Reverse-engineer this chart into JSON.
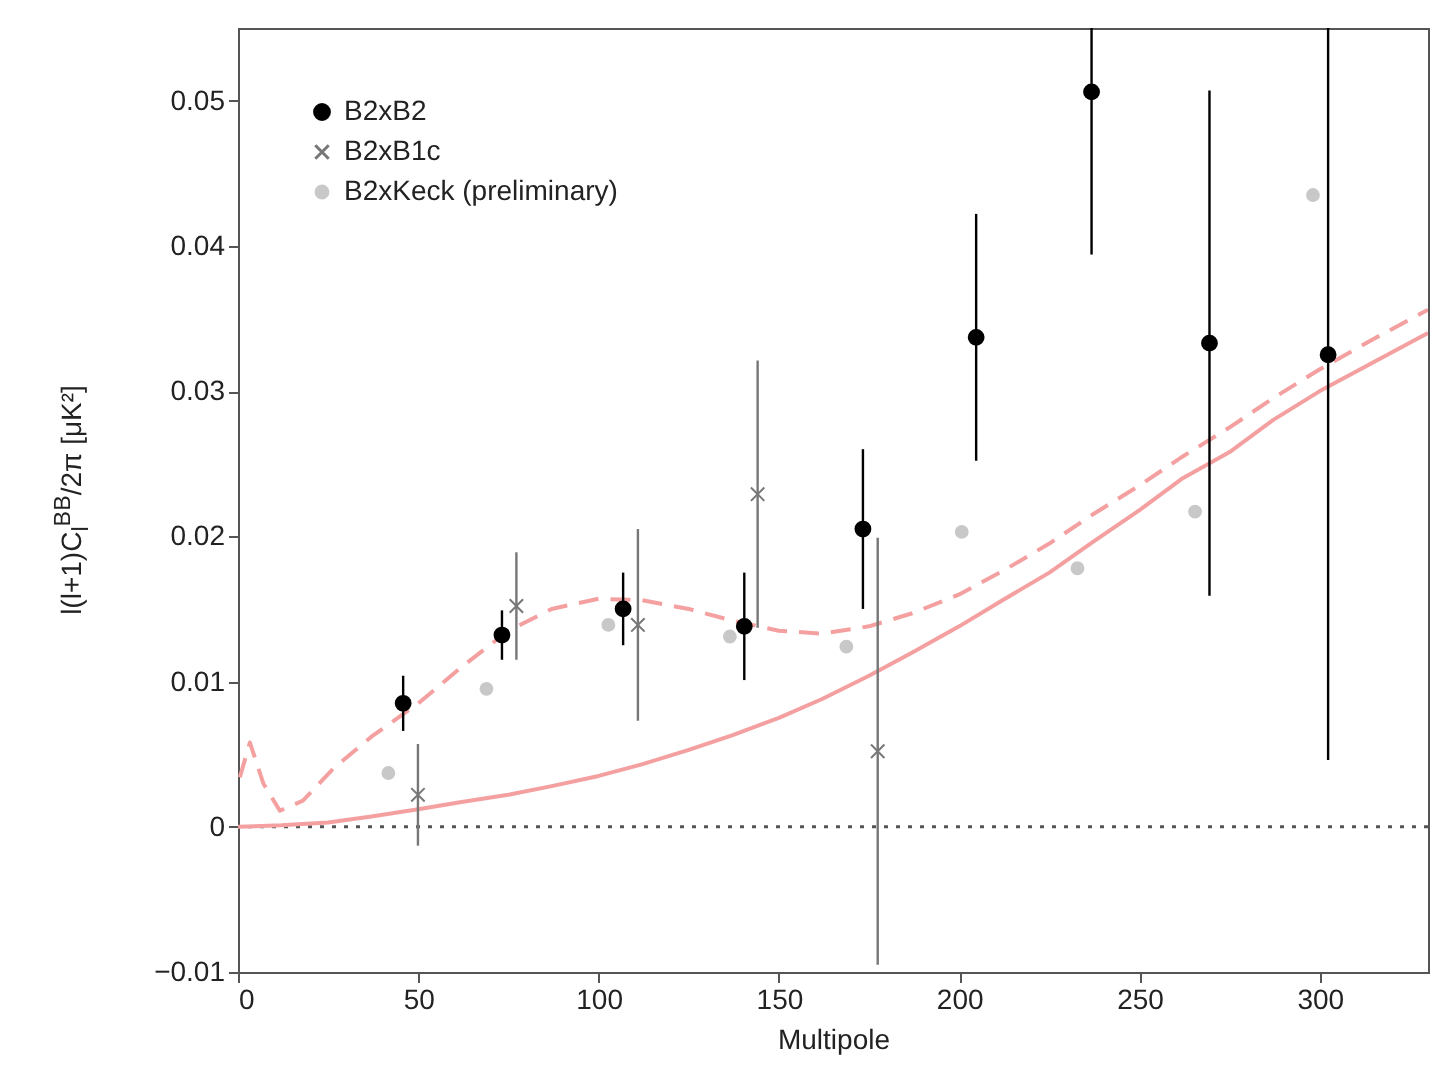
{
  "chart_data": {
    "type": "scatter",
    "xlabel": "Multipole",
    "ylabel": "l(l+1)C$_{l}$$^{BB}$/2π [μK²]",
    "xlim": [
      0,
      330
    ],
    "ylim": [
      -0.01,
      0.055
    ],
    "xticks": [
      0,
      50,
      100,
      150,
      200,
      250,
      300
    ],
    "yticks": [
      -0.01,
      0,
      0.01,
      0.02,
      0.03,
      0.04,
      0.05
    ],
    "legend": "top left",
    "ref_lines": [
      {
        "axis": "y",
        "value": 0,
        "color": "#555555",
        "line_style": "dotted"
      }
    ],
    "series": [
      {
        "name": "B2xB2",
        "color": "#000000",
        "marker": "circle",
        "x": [
          45.8,
          73.2,
          106.8,
          140.4,
          173.3,
          204.7,
          236.7,
          269.4,
          302.3
        ],
        "values": [
          0.0085,
          0.0132,
          0.015,
          0.0138,
          0.0205,
          0.0337,
          0.0506,
          0.0333,
          0.0325
        ],
        "errors": [
          0.0019,
          0.0017,
          0.0025,
          0.0037,
          0.0055,
          0.0085,
          [
            0.0394,
            0.055
          ],
          0.0174,
          [
            0.0046,
            0.055
          ]
        ]
      },
      {
        "name": "B2xB1c",
        "color": "#777777",
        "marker": "cross",
        "x": [
          49.9,
          77.2,
          110.9,
          144.1,
          177.4
        ],
        "values": [
          0.0022,
          0.0152,
          0.0139,
          0.0229,
          0.0052
        ],
        "errors": [
          0.0035,
          0.0037,
          0.0066,
          0.0092,
          0.0147
        ]
      },
      {
        "name": "B2xKeck (preliminary)",
        "color": "#c8c8c8",
        "marker": "circle",
        "x": [
          41.7,
          68.9,
          102.7,
          136.4,
          168.7,
          200.7,
          232.8,
          265.4,
          298.1
        ],
        "values": [
          0.0037,
          0.0095,
          0.0139,
          0.0131,
          0.0124,
          0.0203,
          0.0178,
          0.0217,
          0.0435
        ]
      },
      {
        "type": "line",
        "color": "#f4a0a0",
        "line_style": "dashed",
        "x": [
          0.5,
          3.3,
          7,
          11.6,
          18,
          26.4,
          37,
          50,
          62,
          75,
          87,
          100,
          112,
          125,
          137,
          150,
          162,
          175,
          187,
          200,
          212,
          225,
          237,
          250,
          262,
          275,
          287,
          300,
          315,
          330
        ],
        "values": [
          0.0034,
          0.0058,
          0.003,
          0.0011,
          0.0018,
          0.004,
          0.0062,
          0.0085,
          0.011,
          0.0135,
          0.015,
          0.0157,
          0.0156,
          0.015,
          0.0142,
          0.0135,
          0.0133,
          0.0138,
          0.0147,
          0.016,
          0.0176,
          0.0195,
          0.0215,
          0.0235,
          0.0255,
          0.0275,
          0.0295,
          0.0315,
          0.0336,
          0.0356
        ]
      },
      {
        "type": "line",
        "color": "#f4a0a0",
        "line_style": "solid",
        "x": [
          0,
          12,
          25,
          37,
          50,
          62,
          75,
          87,
          100,
          112,
          125,
          137,
          150,
          162,
          175,
          187,
          200,
          212,
          225,
          237,
          250,
          262,
          275,
          287,
          300,
          315,
          330
        ],
        "values": [
          0,
          0.0001,
          0.0003,
          0.0007,
          0.0012,
          0.0017,
          0.0022,
          0.0028,
          0.0035,
          0.0043,
          0.0053,
          0.0063,
          0.0075,
          0.0088,
          0.0104,
          0.012,
          0.0138,
          0.0156,
          0.0175,
          0.0196,
          0.0218,
          0.024,
          0.0258,
          0.028,
          0.03,
          0.032,
          0.034
        ]
      }
    ]
  }
}
